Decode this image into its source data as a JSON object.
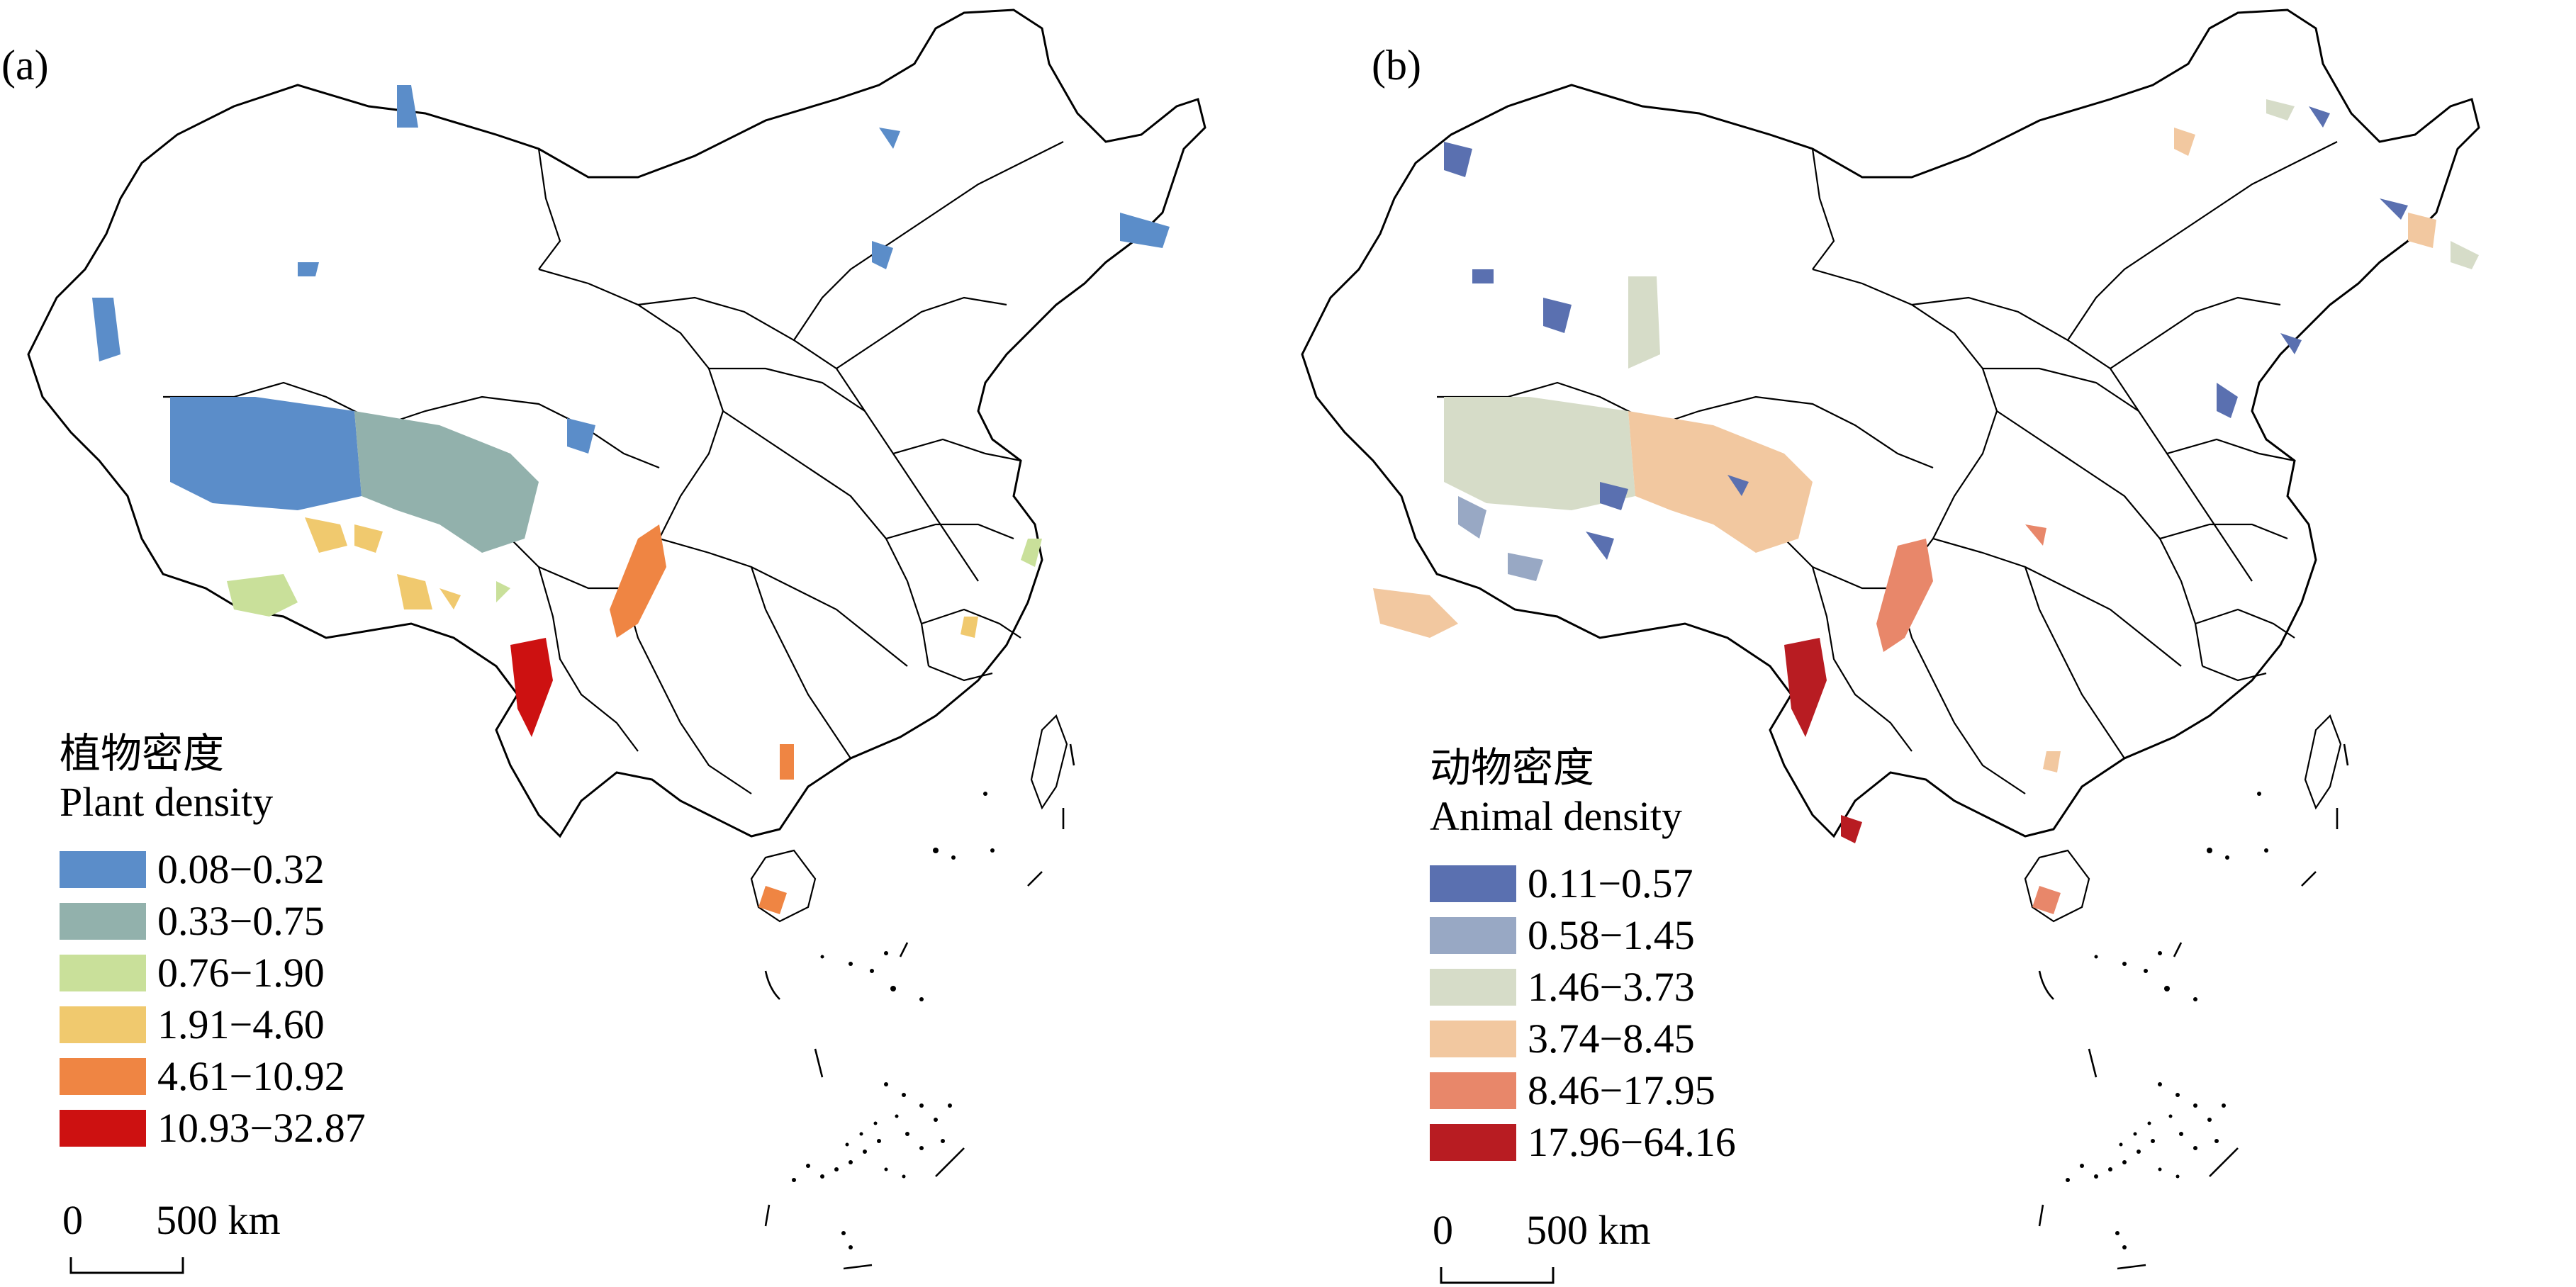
{
  "panels": {
    "a": {
      "label": "(a)",
      "legend_title_zh": "植物密度",
      "legend_title_en": "Plant density",
      "classes": [
        {
          "label": "0.08−0.32",
          "color": "#5b8dc9"
        },
        {
          "label": "0.33−0.75",
          "color": "#92b1ac"
        },
        {
          "label": "0.76−1.90",
          "color": "#c9e09a"
        },
        {
          "label": "1.91−4.60",
          "color": "#f0c96e"
        },
        {
          "label": "4.61−10.92",
          "color": "#ef8543"
        },
        {
          "label": "10.93−32.87",
          "color": "#cd1111"
        }
      ],
      "scale": {
        "zero": "0",
        "label": "500 km"
      }
    },
    "b": {
      "label": "(b)",
      "legend_title_zh": "动物密度",
      "legend_title_en": "Animal density",
      "classes": [
        {
          "label": "0.11−0.57",
          "color": "#5a70b0"
        },
        {
          "label": "0.58−1.45",
          "color": "#98a8c4"
        },
        {
          "label": "1.46−3.73",
          "color": "#d6dcc8"
        },
        {
          "label": "3.74−8.45",
          "color": "#f2c8a0"
        },
        {
          "label": "8.46−17.95",
          "color": "#e8876a"
        },
        {
          "label": "17.96−64.16",
          "color": "#b81c22"
        }
      ],
      "scale": {
        "zero": "0",
        "label": "500 km"
      }
    }
  }
}
